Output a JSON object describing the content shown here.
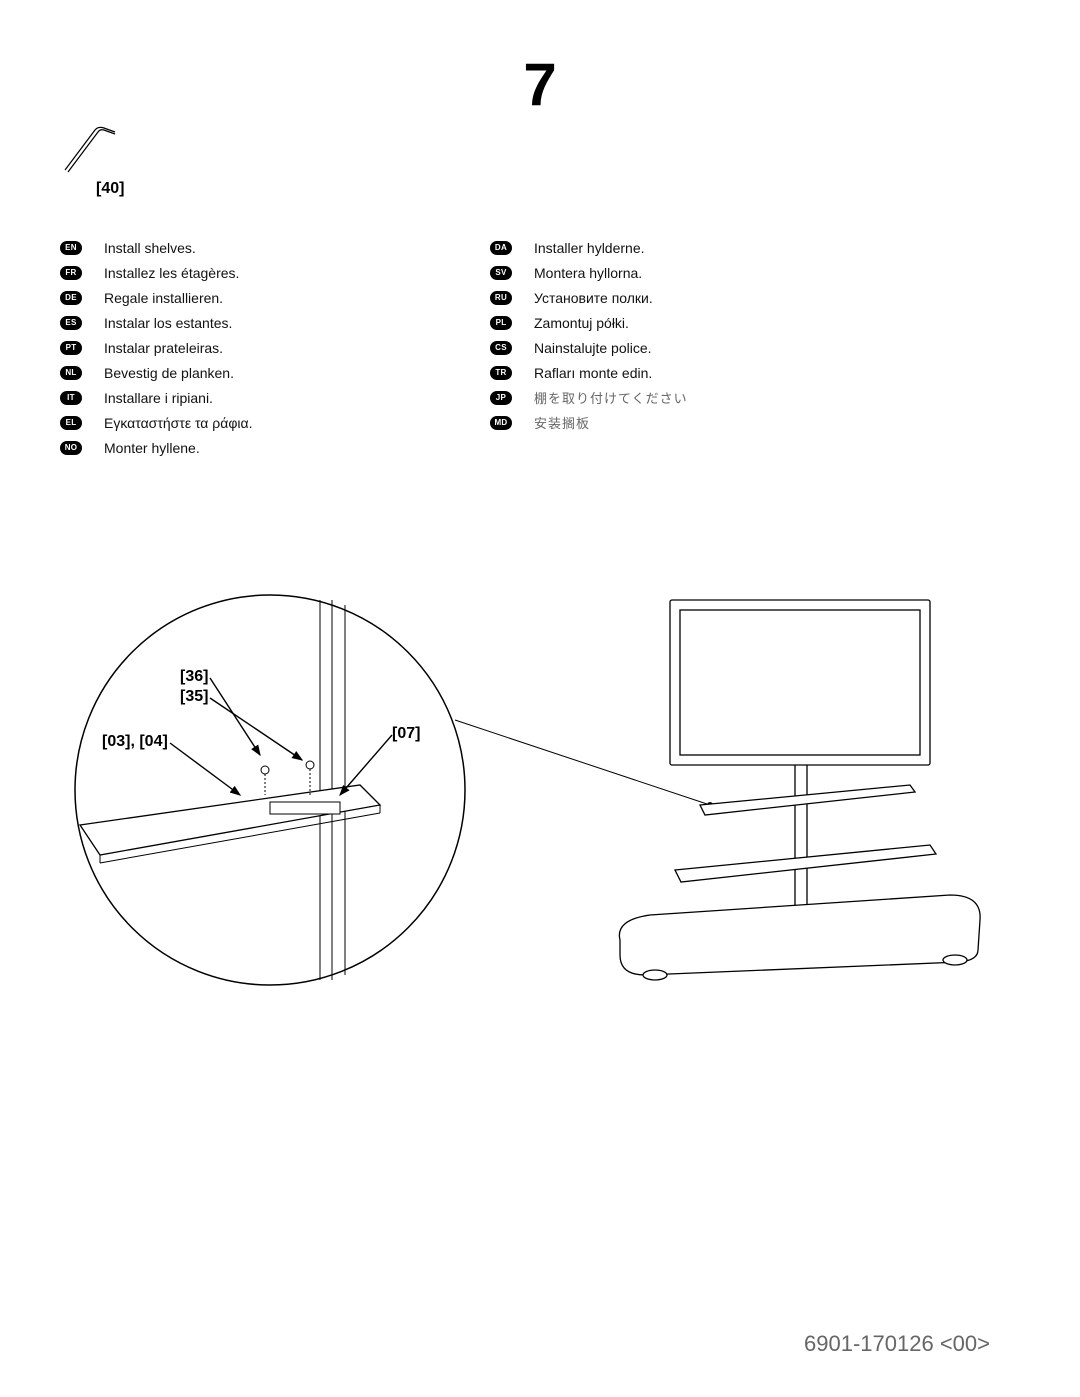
{
  "step_number": "7",
  "tool": {
    "part_ref": "[40]"
  },
  "languages_left": [
    {
      "code": "EN",
      "text": "Install shelves."
    },
    {
      "code": "FR",
      "text": "Installez les étagères."
    },
    {
      "code": "DE",
      "text": "Regale installieren."
    },
    {
      "code": "ES",
      "text": "Instalar los estantes."
    },
    {
      "code": "PT",
      "text": "Instalar prateleiras."
    },
    {
      "code": "NL",
      "text": "Bevestig de planken."
    },
    {
      "code": "IT",
      "text": "Installare i ripiani."
    },
    {
      "code": "EL",
      "text": "Εγκαταστήστε τα ράφια."
    },
    {
      "code": "NO",
      "text": "Monter hyllene."
    }
  ],
  "languages_right": [
    {
      "code": "DA",
      "text": "Installer hylderne."
    },
    {
      "code": "SV",
      "text": "Montera hyllorna."
    },
    {
      "code": "RU",
      "text": "Установите полки."
    },
    {
      "code": "PL",
      "text": "Zamontuj półki."
    },
    {
      "code": "CS",
      "text": "Nainstalujte police."
    },
    {
      "code": "TR",
      "text": "Rafları monte edin."
    },
    {
      "code": "JP",
      "text": "棚を取り付けてください",
      "cjk": true
    },
    {
      "code": "MD",
      "text": "安装搁板",
      "cjk": true
    }
  ],
  "diagram_labels": {
    "label_36": "[36]",
    "label_35": "[35]",
    "label_03_04": "[03], [04]",
    "label_07": "[07]"
  },
  "footer": "6901-170126 <00>",
  "style": {
    "page_bg": "#ffffff",
    "text_color": "#1a1a1a",
    "footer_color": "#666666",
    "badge_bg": "#000000",
    "badge_fg": "#ffffff",
    "stroke": "#000000",
    "stroke_thin": 1,
    "stroke_mid": 1.5
  }
}
